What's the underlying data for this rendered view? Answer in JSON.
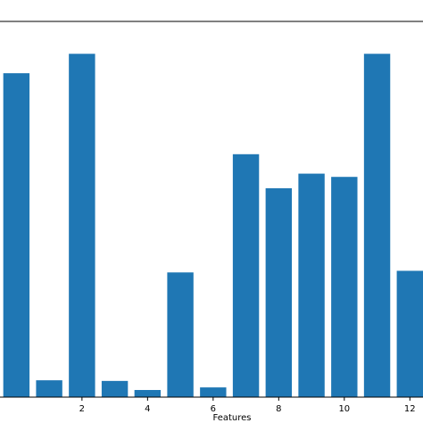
{
  "chart_data": {
    "type": "bar",
    "xlabel": "Features",
    "ylabel": "",
    "title": "",
    "x": [
      0,
      1,
      2,
      3,
      4,
      5,
      6,
      7,
      8,
      9,
      10,
      11,
      12
    ],
    "values": [
      1.0,
      0.052,
      1.06,
      0.05,
      0.022,
      0.385,
      0.03,
      0.75,
      0.645,
      0.69,
      0.68,
      1.06,
      0.39
    ],
    "xlim": [
      -0.5,
      12.4
    ],
    "ylim": [
      0,
      1.16
    ],
    "xticks": [
      2,
      4,
      6,
      8,
      10,
      12
    ],
    "bar_color": "#1f77b4",
    "grid": false
  }
}
